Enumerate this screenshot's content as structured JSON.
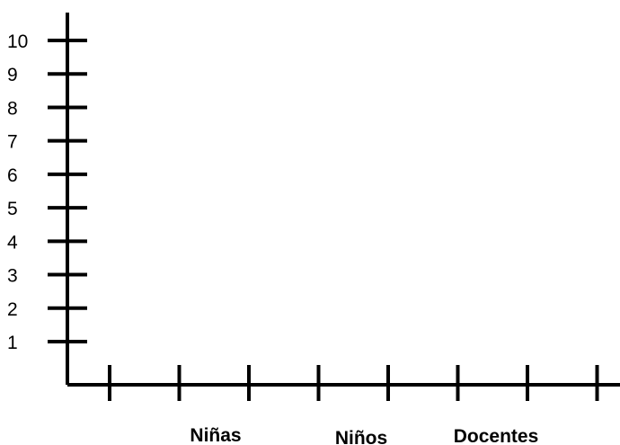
{
  "chart_data": {
    "type": "bar",
    "title": "",
    "xlabel": "",
    "ylabel": "",
    "ylim": [
      0,
      10
    ],
    "y_ticks": [
      "1",
      "2",
      "3",
      "4",
      "5",
      "6",
      "7",
      "8",
      "9",
      "10"
    ],
    "categories": [
      "Niñas",
      "Niños",
      "Docentes"
    ],
    "values": [
      null,
      null,
      null
    ],
    "x_tick_count": 8,
    "grid": false,
    "legend": "none",
    "colors": {
      "axis": "#000000",
      "background": "#ffffff"
    }
  }
}
